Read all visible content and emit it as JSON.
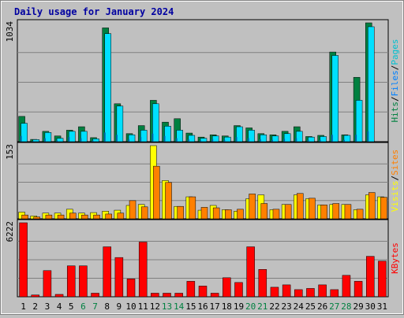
{
  "chart_data": [
    {
      "type": "bar",
      "title": "Daily usage for January 2024",
      "categories": [
        "1",
        "2",
        "3",
        "4",
        "5",
        "6",
        "7",
        "8",
        "9",
        "10",
        "11",
        "12",
        "13",
        "14",
        "15",
        "16",
        "17",
        "18",
        "19",
        "20",
        "21",
        "22",
        "23",
        "24",
        "25",
        "26",
        "27",
        "28",
        "29",
        "30",
        "31"
      ],
      "weekend_days": [
        "6",
        "7",
        "13",
        "14",
        "20",
        "21",
        "27",
        "28"
      ],
      "ylim": [
        0,
        1034
      ],
      "y_tick_label": "1034",
      "legend": [
        "Pages",
        "Files",
        "Hits"
      ],
      "legend_separator": "/",
      "series": [
        {
          "name": "Hits",
          "color": "#008040",
          "values": [
            220,
            20,
            90,
            50,
            100,
            130,
            35,
            990,
            330,
            70,
            140,
            360,
            170,
            200,
            75,
            40,
            60,
            50,
            140,
            120,
            70,
            60,
            90,
            130,
            45,
            55,
            780,
            60,
            560,
            1034,
            0
          ]
        },
        {
          "name": "Files",
          "color": "#00e0ff",
          "values": [
            160,
            18,
            80,
            30,
            90,
            90,
            25,
            940,
            310,
            60,
            100,
            330,
            135,
            100,
            55,
            30,
            50,
            40,
            130,
            100,
            60,
            50,
            70,
            90,
            40,
            45,
            750,
            55,
            360,
            1000,
            0
          ]
        },
        {
          "name": "Pages",
          "color": "#00c0d0",
          "values": [
            50,
            5,
            30,
            10,
            40,
            30,
            10,
            80,
            60,
            20,
            40,
            70,
            50,
            30,
            20,
            10,
            20,
            15,
            40,
            30,
            20,
            15,
            25,
            30,
            15,
            15,
            60,
            15,
            60,
            90,
            0
          ]
        }
      ]
    },
    {
      "type": "bar",
      "ylim": [
        0,
        153
      ],
      "y_tick_label": "153",
      "legend": [
        "Sites",
        "Visits"
      ],
      "legend_separator": "/",
      "series": [
        {
          "name": "Visits",
          "color": "#ffff00",
          "values": [
            14,
            6,
            12,
            12,
            20,
            12,
            13,
            16,
            18,
            28,
            30,
            153,
            80,
            26,
            46,
            18,
            28,
            19,
            16,
            42,
            50,
            19,
            30,
            50,
            42,
            29,
            30,
            30,
            19,
            50,
            46
          ]
        },
        {
          "name": "Sites",
          "color": "#ff8000",
          "values": [
            8,
            4,
            8,
            8,
            12,
            8,
            8,
            10,
            12,
            38,
            25,
            110,
            76,
            26,
            46,
            24,
            23,
            19,
            20,
            52,
            32,
            20,
            30,
            53,
            43,
            29,
            32,
            30,
            20,
            55,
            45
          ]
        }
      ]
    },
    {
      "type": "bar",
      "ylim": [
        0,
        6222
      ],
      "y_tick_label": "6222",
      "legend": [
        "KBytes"
      ],
      "series": [
        {
          "name": "KBytes",
          "color": "#ff0000",
          "values": [
            6222,
            150,
            2200,
            200,
            2600,
            2600,
            300,
            4200,
            3300,
            1500,
            4600,
            300,
            300,
            300,
            1300,
            900,
            300,
            1600,
            1200,
            4200,
            2300,
            800,
            1000,
            600,
            700,
            1000,
            600,
            1800,
            1300,
            3400,
            3000
          ]
        }
      ]
    }
  ]
}
